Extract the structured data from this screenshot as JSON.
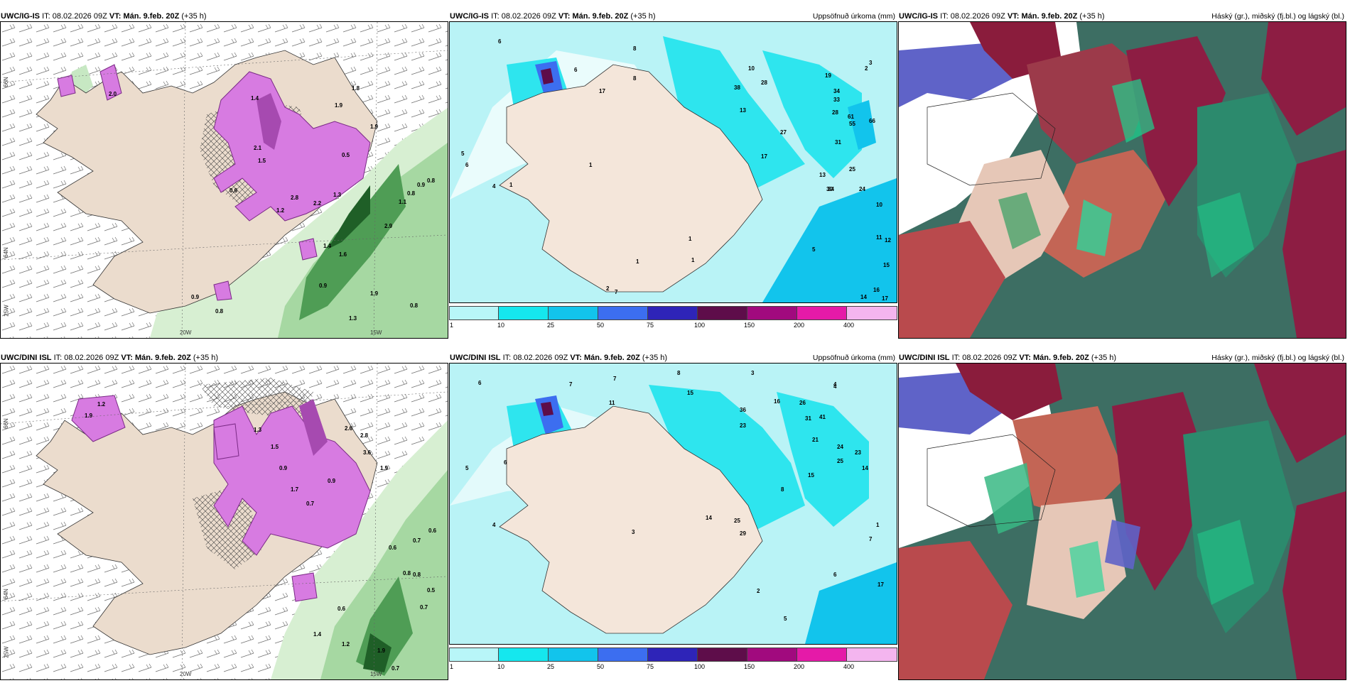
{
  "panels": [
    {
      "model": "UWC/IG-IS",
      "it_label": "IT:",
      "it_value": "08.02.2026 09Z",
      "vt_label": "VT:",
      "vt_value": "Mán. 9.feb. 20Z",
      "lead": "(+35 h)",
      "right_title": ""
    },
    {
      "model": "UWC/IG-IS",
      "it_label": "IT:",
      "it_value": "08.02.2026 09Z",
      "vt_label": "VT:",
      "vt_value": "Mán. 9.feb. 20Z",
      "lead": "(+35 h)",
      "right_title": "Uppsöfnuð úrkoma (mm)"
    },
    {
      "model": "UWC/IG-IS",
      "it_label": "IT:",
      "it_value": "08.02.2026 09Z",
      "vt_label": "VT:",
      "vt_value": "Mán. 9.feb. 20Z",
      "lead": "(+35 h)",
      "right_title": "Háský (gr.), miðský (fj.bl.) og lágský (bl.)"
    },
    {
      "model": "UWC/DINI ISL",
      "it_label": "IT:",
      "it_value": "08.02.2026 09Z",
      "vt_label": "VT:",
      "vt_value": "Mán. 9.feb. 20Z",
      "lead": "(+35 h)",
      "right_title": ""
    },
    {
      "model": "UWC/DINI ISL",
      "it_label": "IT:",
      "it_value": "08.02.2026 09Z",
      "vt_label": "VT:",
      "vt_value": "Mán. 9.feb. 20Z",
      "lead": "(+35 h)",
      "right_title": "Uppsöfnuð úrkoma (mm)"
    },
    {
      "model": "UWC/DINI ISL",
      "it_label": "IT:",
      "it_value": "08.02.2026 09Z",
      "vt_label": "VT:",
      "vt_value": "Mán. 9.feb. 20Z",
      "lead": "(+35 h)",
      "right_title": "Hásky (gr.), miðský (fj.bl.) og lágský (bl.)"
    }
  ],
  "axis_labels": {
    "lat_66": "66N",
    "lat_64": "64N",
    "lon_25": "25W",
    "lon_20": "20W",
    "lon_15": "15W"
  },
  "colorbar": {
    "ticks": [
      "1",
      "10",
      "25",
      "50",
      "75",
      "100",
      "150",
      "200",
      "400"
    ],
    "colors": [
      "#b8f6f8",
      "#15e7ee",
      "#12c4ec",
      "#3c6ef0",
      "#2e24b8",
      "#5e0d4a",
      "#a10a7e",
      "#e51aa8",
      "#f4b5ef"
    ]
  },
  "precip_numbers_top": [
    "6",
    "8",
    "3",
    "6",
    "10",
    "2",
    "19",
    "28",
    "8",
    "17",
    "38",
    "13",
    "34",
    "33",
    "28",
    "61",
    "55",
    "31",
    "66",
    "27",
    "17",
    "13",
    "25",
    "30",
    "34",
    "24",
    "10",
    "11",
    "12",
    "15",
    "16",
    "17",
    "14",
    "5",
    "1",
    "1",
    "2",
    "1",
    "1",
    "7",
    "5",
    "6",
    "4",
    "1"
  ],
  "precip_numbers_bottom": [
    "6",
    "7",
    "7",
    "8",
    "3",
    "4",
    "15",
    "11",
    "16",
    "26",
    "31",
    "41",
    "36",
    "23",
    "21",
    "24",
    "25",
    "14",
    "15",
    "23",
    "8",
    "4",
    "5",
    "4",
    "6",
    "7",
    "6",
    "17",
    "5",
    "2",
    "3",
    "1",
    "14",
    "25",
    "29"
  ],
  "snow_values_top": [
    "2.0",
    "1.4",
    "2.1",
    "1.5",
    "1.9",
    "0.6",
    "1.2",
    "2.8",
    "2.2",
    "1.3",
    "0.5",
    "1.9",
    "0.8",
    "0.9",
    "1.1",
    "0.8",
    "0.9",
    "2.9",
    "1.9",
    "1.3",
    "0.9",
    "0.8",
    "1.6",
    "1.4",
    "1.8",
    "0.8"
  ],
  "snow_values_bottom": [
    "1.2",
    "1.9",
    "1.3",
    "1.5",
    "0.9",
    "1.7",
    "0.7",
    "2.6",
    "2.8",
    "3.6",
    "1.9",
    "0.9",
    "0.6",
    "0.7",
    "0.8",
    "0.5",
    "0.6",
    "0.7",
    "0.6",
    "1.9",
    "0.7",
    "0.8",
    "1.4",
    "1.2"
  ]
}
